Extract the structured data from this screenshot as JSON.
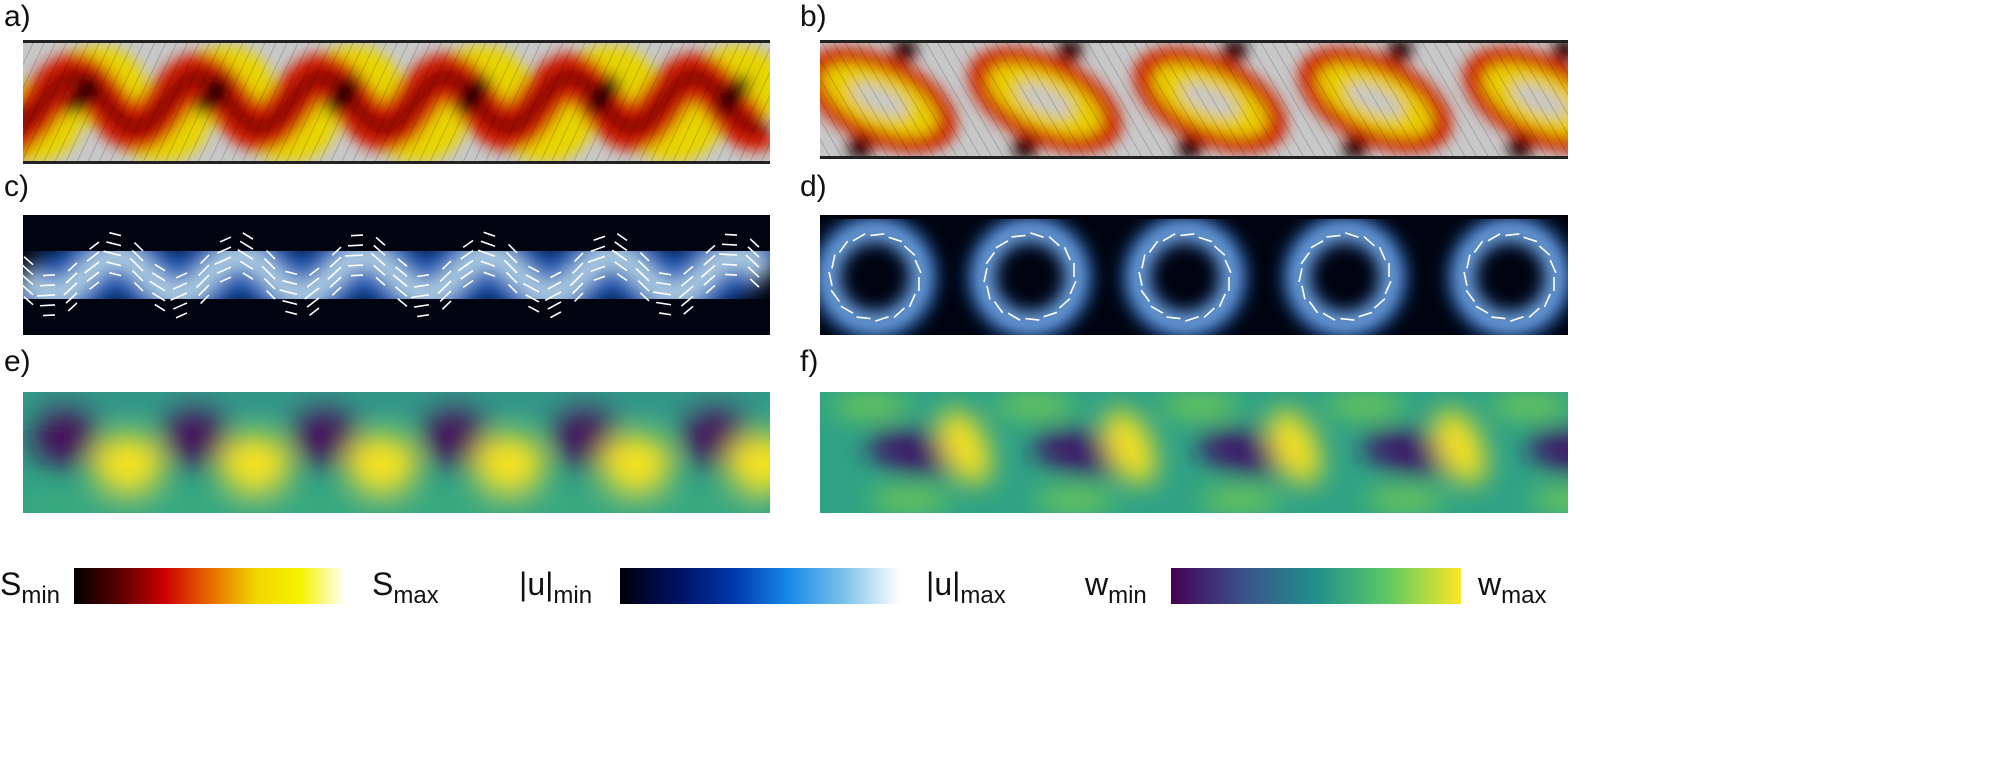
{
  "panels": [
    {
      "label": "a)",
      "field": "order_parameter_S",
      "colormap": "hot"
    },
    {
      "label": "b)",
      "field": "order_parameter_S",
      "colormap": "hot"
    },
    {
      "label": "c)",
      "field": "velocity_magnitude_u",
      "colormap": "blue"
    },
    {
      "label": "d)",
      "field": "velocity_magnitude_u",
      "colormap": "blue"
    },
    {
      "label": "e)",
      "field": "vorticity_w",
      "colormap": "viridis"
    },
    {
      "label": "f)",
      "field": "vorticity_w",
      "colormap": "viridis"
    }
  ],
  "colorbars": {
    "s": {
      "min_base": "S",
      "min_sub": "min",
      "max_base": "S",
      "max_sub": "max",
      "stops": [
        "#000000",
        "#5a0000",
        "#cc0000",
        "#e86a00",
        "#f2d400",
        "#f6f200",
        "#ffffff"
      ]
    },
    "u": {
      "min_base": "|u|",
      "min_sub": "min",
      "max_base": "|u|",
      "max_sub": "max",
      "stops": [
        "#000008",
        "#001060",
        "#0036a8",
        "#1688e8",
        "#7cc2ea",
        "#ffffff"
      ]
    },
    "w": {
      "min_base": "w",
      "min_sub": "min",
      "max_base": "w",
      "max_sub": "max",
      "stops": [
        "#440154",
        "#3b528b",
        "#21908d",
        "#5dc963",
        "#fde725"
      ]
    }
  }
}
